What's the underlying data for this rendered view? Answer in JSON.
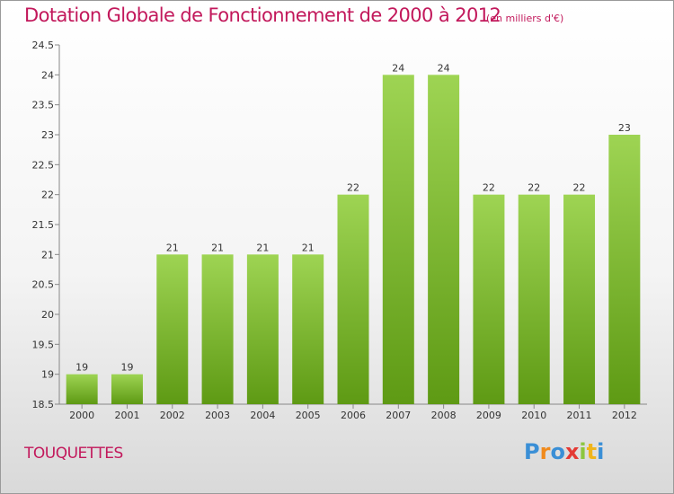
{
  "title": "Dotation Globale de Fonctionnement de 2000 à 2012",
  "unit_note": "(en milliers d'€)",
  "commune": "TOUQUETTES",
  "logo": {
    "letters": [
      "P",
      "r",
      "o",
      "x",
      "i",
      "t",
      "i"
    ],
    "colors": [
      "#3a8fd6",
      "#f08a1c",
      "#3a8fd6",
      "#e43a35",
      "#8cc63f",
      "#f0b51c",
      "#3a8fd6"
    ]
  },
  "colors": {
    "bar_top": "#9ed453",
    "bar_bottom": "#5e9a14",
    "title": "#c2185b"
  },
  "chart_data": {
    "type": "bar",
    "categories": [
      "2000",
      "2001",
      "2002",
      "2003",
      "2004",
      "2005",
      "2006",
      "2007",
      "2008",
      "2009",
      "2010",
      "2011",
      "2012"
    ],
    "values": [
      19,
      19,
      21,
      21,
      21,
      21,
      22,
      24,
      24,
      22,
      22,
      22,
      23
    ],
    "value_labels": [
      "19",
      "19",
      "21",
      "21",
      "21",
      "21",
      "22",
      "24",
      "24",
      "22",
      "22",
      "22",
      "23"
    ],
    "ylim": [
      18.5,
      24.5
    ],
    "yticks": [
      18.5,
      19,
      19.5,
      20,
      20.5,
      21,
      21.5,
      22,
      22.5,
      23,
      23.5,
      24,
      24.5
    ],
    "ytick_labels": [
      "18.5",
      "19",
      "19.5",
      "20",
      "20.5",
      "21",
      "21.5",
      "22",
      "22.5",
      "23",
      "23.5",
      "24",
      "24.5"
    ],
    "grid": false,
    "xlabel": "",
    "ylabel": ""
  }
}
